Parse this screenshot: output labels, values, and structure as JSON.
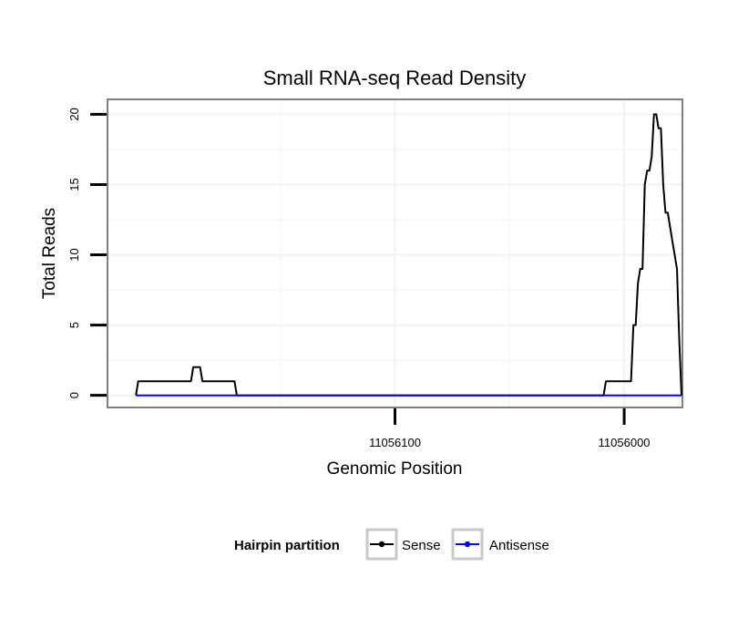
{
  "chart_data": {
    "type": "line",
    "title": "Small RNA-seq Read Density",
    "xlabel": "Genomic Position",
    "ylabel": "Total Reads",
    "x_reversed": true,
    "xlim": [
      11056225,
      11055975
    ],
    "ylim": [
      -0.8,
      21
    ],
    "xticks": [
      11056100,
      11056000
    ],
    "xtick_labels": [
      "11056100",
      "11056000"
    ],
    "yticks": [
      0,
      5,
      10,
      15,
      20
    ],
    "ytick_labels": [
      "0",
      "5",
      "10",
      "15",
      "20"
    ],
    "grid": true,
    "legend": {
      "title": "Hairpin partition",
      "position": "bottom",
      "entries": [
        "Sense",
        "Antisense"
      ]
    },
    "series": [
      {
        "name": "Sense",
        "color": "#000000",
        "x": [
          11056213,
          11056212,
          11056189,
          11056188,
          11056185,
          11056184,
          11056170,
          11056169,
          11056009,
          11056008,
          11055997,
          11055996,
          11055995,
          11055994,
          11055993,
          11055992,
          11055991,
          11055990,
          11055989,
          11055988,
          11055987,
          11055986,
          11055985,
          11055984,
          11055983,
          11055982,
          11055981,
          11055980,
          11055979,
          11055978,
          11055977,
          11055976,
          11055975
        ],
        "y": [
          0,
          1,
          1,
          2,
          2,
          1,
          1,
          0,
          0,
          1,
          1,
          5,
          5,
          8,
          9,
          9,
          15,
          16,
          16,
          17,
          20,
          20,
          19,
          19,
          15,
          13,
          13,
          12,
          11,
          10,
          9,
          4,
          0
        ]
      },
      {
        "name": "Antisense",
        "color": "#0000ff",
        "x": [
          11056213,
          11055975
        ],
        "y": [
          0,
          0
        ]
      }
    ]
  }
}
